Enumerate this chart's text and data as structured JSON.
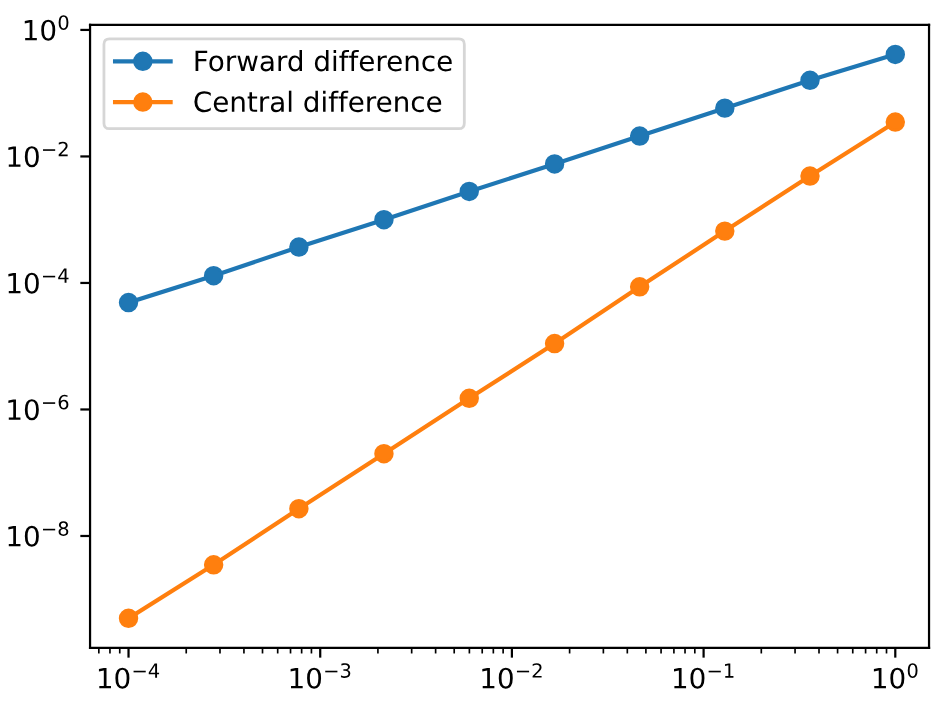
{
  "chart_data": {
    "type": "line",
    "log": "xy",
    "x": [
      0.0001,
      0.000278,
      0.000774,
      0.00215,
      0.00599,
      0.0167,
      0.0464,
      0.129,
      0.359,
      1
    ],
    "series": [
      {
        "name": "Forward difference",
        "color": "#1f77b4",
        "values": [
          4.9e-05,
          0.00013,
          0.00037,
          0.001,
          0.0028,
          0.0076,
          0.021,
          0.058,
          0.16,
          0.41
        ]
      },
      {
        "name": "Central difference",
        "color": "#ff7f0e",
        "values": [
          5e-10,
          3.5e-09,
          2.7e-08,
          2e-07,
          1.5e-06,
          1.1e-05,
          8.7e-05,
          0.00066,
          0.0049,
          0.035
        ]
      }
    ],
    "xlim": [
      6.3e-05,
      1.5
    ],
    "ylim": [
      1.7e-10,
      1.2
    ],
    "xticks": [
      {
        "value": 0.0001,
        "label": "10$^{−4}$"
      },
      {
        "value": 0.001,
        "label": "10$^{−3}$"
      },
      {
        "value": 0.01,
        "label": "10$^{−2}$"
      },
      {
        "value": 0.1,
        "label": "10$^{−1}$"
      },
      {
        "value": 1,
        "label": "10$^{0}$"
      }
    ],
    "yticks": [
      {
        "value": 1e-08,
        "label": "10$^{−8}$"
      },
      {
        "value": 1e-06,
        "label": "10$^{−6}$"
      },
      {
        "value": 0.0001,
        "label": "10$^{−4}$"
      },
      {
        "value": 0.01,
        "label": "10$^{−2}$"
      },
      {
        "value": 1,
        "label": "10$^{0}$"
      }
    ],
    "marker": "circle",
    "line_style": "solid",
    "legend": "top left",
    "grid": false
  }
}
